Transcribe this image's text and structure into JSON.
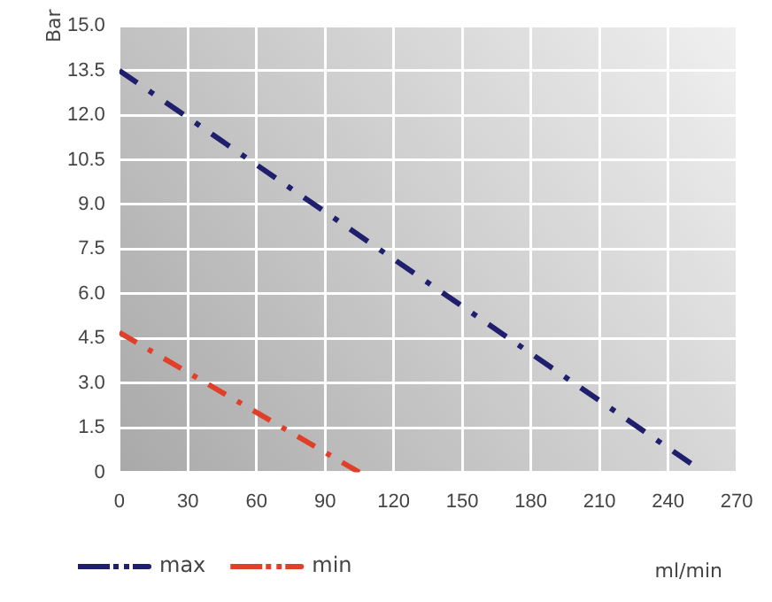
{
  "chart_data": {
    "type": "line",
    "xlabel": "ml/min",
    "ylabel": "Bar",
    "series": [
      {
        "name": "max",
        "color": "#1f1f6e",
        "x": [
          0,
          250
        ],
        "values": [
          13.5,
          0.3
        ]
      },
      {
        "name": "min",
        "color": "#e0402a",
        "x": [
          0,
          105
        ],
        "values": [
          4.7,
          0
        ]
      }
    ],
    "xlim": [
      0,
      270
    ],
    "xticks": [
      0,
      30,
      60,
      90,
      120,
      150,
      180,
      210,
      240,
      270
    ],
    "ylim": [
      0,
      15
    ],
    "yticks": [
      0,
      {
        "value": 1.5,
        "label": "1.5"
      },
      {
        "value": 3,
        "label": "3.0"
      },
      {
        "value": 4.5,
        "label": "4.5"
      },
      {
        "value": 6,
        "label": "6.0"
      },
      {
        "value": 7.5,
        "label": "7.5"
      },
      {
        "value": 9,
        "label": "9.0"
      },
      {
        "value": 10.5,
        "label": "10.5"
      },
      {
        "value": 12,
        "label": "12.0"
      },
      {
        "value": 13.5,
        "label": "13.5"
      },
      {
        "value": 15,
        "label": "15.0"
      }
    ],
    "grid": true,
    "legend": "bottom left",
    "marker": "none",
    "line_style": "dashdot"
  }
}
